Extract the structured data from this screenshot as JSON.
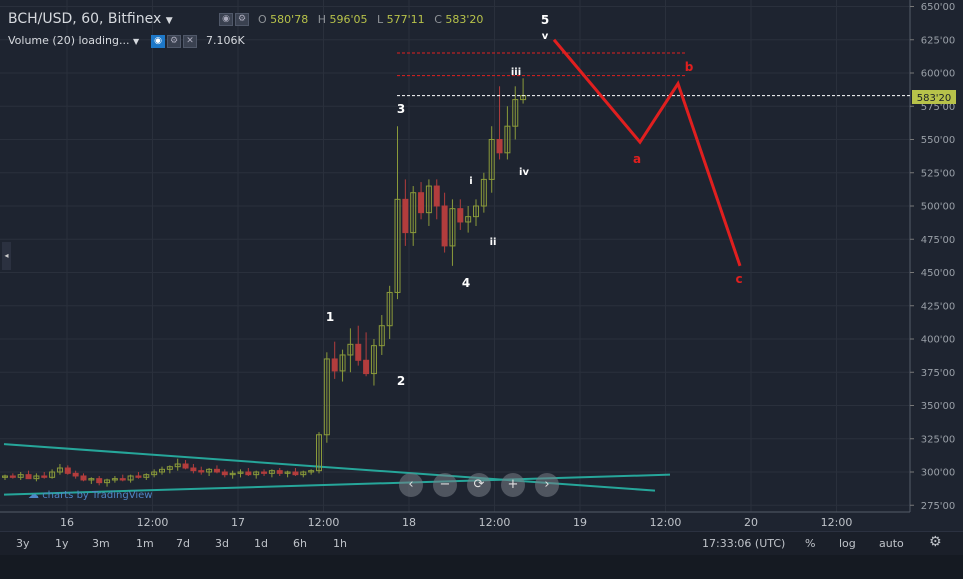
{
  "header": {
    "symbol": "BCH/USD, 60, Bitfinex",
    "ohlc": {
      "o_label": "O",
      "o": "580'78",
      "h_label": "H",
      "h": "596'05",
      "l_label": "L",
      "l": "577'11",
      "c_label": "C",
      "c": "583'20"
    },
    "volume_label": "Volume (20) loading...",
    "volume_value": "7.106K"
  },
  "watermark": "charts by TradingView",
  "price_axis": {
    "ticks": [
      "650'00",
      "625'00",
      "600'00",
      "575'00",
      "550'00",
      "525'00",
      "500'00",
      "475'00",
      "450'00",
      "425'00",
      "400'00",
      "375'00",
      "350'00",
      "325'00",
      "300'00",
      "275'00"
    ],
    "current_price": "583'20"
  },
  "time_axis": {
    "ticks": [
      "16",
      "12:00",
      "17",
      "12:00",
      "18",
      "12:00",
      "19",
      "12:00",
      "20",
      "12:00"
    ]
  },
  "wave_labels": {
    "major": [
      "1",
      "2",
      "3",
      "4",
      "5"
    ],
    "minor": [
      "i",
      "ii",
      "iii",
      "iv",
      "v"
    ],
    "projection": [
      "a",
      "b",
      "c"
    ]
  },
  "ranges": [
    "3y",
    "1y",
    "3m",
    "1m",
    "7d",
    "3d",
    "1d",
    "6h",
    "1h"
  ],
  "clock": "17:33:06 (UTC)",
  "scale_options": [
    "%",
    "log",
    "auto"
  ],
  "nav_buttons": [
    "‹",
    "−",
    "⟳",
    "+",
    "›"
  ],
  "colors": {
    "bull": "#8a9a3a",
    "bear": "#b23d3d",
    "projection": "#e01f1f",
    "trendline": "#26a69a",
    "background": "#1e2430"
  },
  "chart_data": {
    "type": "candlestick",
    "title": "BCH/USD, 60, Bitfinex",
    "ylim": [
      265,
      655
    ],
    "x_ticks": [
      "16",
      "12:00",
      "17",
      "12:00",
      "18",
      "12:00",
      "19",
      "12:00",
      "20",
      "12:00"
    ],
    "candles_ohlc": [
      [
        296,
        298,
        294,
        297
      ],
      [
        297,
        299,
        295,
        296
      ],
      [
        296,
        300,
        294,
        298
      ],
      [
        298,
        301,
        296,
        295
      ],
      [
        295,
        299,
        293,
        297
      ],
      [
        297,
        300,
        295,
        296
      ],
      [
        296,
        302,
        295,
        300
      ],
      [
        300,
        306,
        298,
        303
      ],
      [
        303,
        305,
        298,
        299
      ],
      [
        299,
        301,
        295,
        297
      ],
      [
        297,
        299,
        293,
        294
      ],
      [
        294,
        296,
        291,
        295
      ],
      [
        295,
        297,
        290,
        292
      ],
      [
        292,
        295,
        289,
        294
      ],
      [
        294,
        297,
        292,
        295
      ],
      [
        295,
        298,
        293,
        294
      ],
      [
        294,
        298,
        292,
        297
      ],
      [
        297,
        300,
        295,
        296
      ],
      [
        296,
        299,
        294,
        298
      ],
      [
        298,
        302,
        296,
        300
      ],
      [
        300,
        304,
        298,
        302
      ],
      [
        302,
        305,
        299,
        304
      ],
      [
        304,
        310,
        301,
        306
      ],
      [
        306,
        309,
        302,
        303
      ],
      [
        303,
        306,
        299,
        301
      ],
      [
        301,
        304,
        298,
        300
      ],
      [
        300,
        303,
        297,
        302
      ],
      [
        302,
        305,
        299,
        300
      ],
      [
        300,
        302,
        296,
        298
      ],
      [
        298,
        301,
        295,
        299
      ],
      [
        299,
        302,
        296,
        300
      ],
      [
        300,
        303,
        297,
        298
      ],
      [
        298,
        301,
        295,
        300
      ],
      [
        300,
        302,
        297,
        299
      ],
      [
        299,
        302,
        296,
        301
      ],
      [
        301,
        303,
        297,
        299
      ],
      [
        299,
        301,
        296,
        300
      ],
      [
        300,
        303,
        297,
        298
      ],
      [
        298,
        301,
        296,
        300
      ],
      [
        300,
        302,
        298,
        301
      ],
      [
        301,
        330,
        299,
        328
      ],
      [
        328,
        390,
        322,
        385
      ],
      [
        385,
        398,
        370,
        376
      ],
      [
        376,
        392,
        368,
        388
      ],
      [
        388,
        408,
        375,
        396
      ],
      [
        396,
        410,
        380,
        384
      ],
      [
        384,
        405,
        372,
        374
      ],
      [
        374,
        400,
        365,
        395
      ],
      [
        395,
        418,
        388,
        410
      ],
      [
        410,
        440,
        400,
        435
      ],
      [
        435,
        560,
        430,
        505
      ],
      [
        505,
        520,
        470,
        480
      ],
      [
        480,
        515,
        470,
        510
      ],
      [
        510,
        518,
        490,
        495
      ],
      [
        495,
        520,
        485,
        515
      ],
      [
        515,
        520,
        490,
        500
      ],
      [
        500,
        510,
        465,
        470
      ],
      [
        470,
        505,
        455,
        498
      ],
      [
        498,
        505,
        482,
        488
      ],
      [
        488,
        500,
        480,
        492
      ],
      [
        492,
        505,
        485,
        500
      ],
      [
        500,
        525,
        495,
        520
      ],
      [
        520,
        560,
        510,
        550
      ],
      [
        550,
        590,
        535,
        540
      ],
      [
        540,
        575,
        535,
        560
      ],
      [
        560,
        590,
        550,
        580
      ],
      [
        580,
        596,
        577,
        583
      ]
    ],
    "price_levels": [
      615,
      598,
      583
    ],
    "projection_path": [
      [
        625,
        "v"
      ],
      [
        548,
        "a"
      ],
      [
        592,
        "b"
      ],
      [
        455,
        "c"
      ]
    ]
  }
}
